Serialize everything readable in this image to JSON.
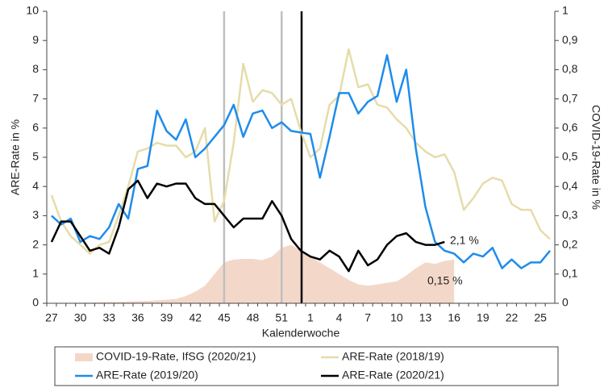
{
  "chart_data": {
    "type": "line",
    "ylabel": "ARE-Rate in %",
    "y2label": "COVID-19-Rate in %",
    "xlabel": "Kalenderwoche",
    "categories": [
      "27",
      null,
      null,
      "30",
      null,
      null,
      "33",
      null,
      null,
      "36",
      null,
      null,
      "39",
      null,
      null,
      "42",
      null,
      null,
      "45",
      null,
      null,
      "48",
      null,
      null,
      "51",
      null,
      null,
      "1",
      null,
      null,
      "4",
      null,
      null,
      "7",
      null,
      null,
      "10",
      null,
      null,
      "13",
      null,
      null,
      "16",
      null,
      null,
      "19",
      null,
      null,
      "22",
      null,
      null,
      "25",
      null
    ],
    "ylim": [
      0,
      10
    ],
    "yticks": [
      0,
      1,
      2,
      3,
      4,
      5,
      6,
      7,
      8,
      9,
      10
    ],
    "y2lim": [
      0,
      1
    ],
    "y2ticks": [
      0,
      {
        "value": 0.1,
        "label": "0,1"
      },
      {
        "value": 0.2,
        "label": "0,2"
      },
      {
        "value": 0.3,
        "label": "0,3"
      },
      {
        "value": 0.4,
        "label": "0,4"
      },
      {
        "value": 0.5,
        "label": "0,5"
      },
      {
        "value": 0.6,
        "label": "0,6"
      },
      {
        "value": 0.7,
        "label": "0,7"
      },
      {
        "value": 0.8,
        "label": "0,8"
      },
      {
        "value": 0.9,
        "label": "0,9"
      },
      1
    ],
    "series": [
      {
        "name": "COVID-19-Rate, IfSG (2020/21)",
        "kind": "area",
        "axis": "y2",
        "color": "#f3d8ca",
        "values": [
          0.001,
          0.001,
          0.001,
          0.002,
          0.002,
          0.003,
          0.004,
          0.005,
          0.006,
          0.007,
          0.008,
          0.01,
          0.012,
          0.015,
          0.025,
          0.04,
          0.06,
          0.1,
          0.14,
          0.15,
          0.152,
          0.152,
          0.148,
          0.16,
          0.19,
          0.2,
          0.18,
          0.16,
          0.14,
          0.12,
          0.1,
          0.08,
          0.065,
          0.06,
          0.065,
          0.07,
          0.075,
          0.095,
          0.12,
          0.14,
          0.135,
          0.145,
          0.15,
          null,
          null,
          null,
          null,
          null,
          null,
          null,
          null,
          null,
          null
        ]
      },
      {
        "name": "ARE-Rate (2018/19)",
        "kind": "line",
        "color": "#e6dcaa",
        "values": [
          3.7,
          2.8,
          2.3,
          2.0,
          1.7,
          2.0,
          2.1,
          3.0,
          4.0,
          5.2,
          5.3,
          5.5,
          5.4,
          5.4,
          5.0,
          5.2,
          6.0,
          2.8,
          3.5,
          5.5,
          8.2,
          6.9,
          7.3,
          7.2,
          6.8,
          7.0,
          5.9,
          5.0,
          5.3,
          6.8,
          7.1,
          8.7,
          7.4,
          7.5,
          6.8,
          6.7,
          6.3,
          6.0,
          5.5,
          5.2,
          5.0,
          5.1,
          4.5,
          3.2,
          3.6,
          4.1,
          4.3,
          4.2,
          3.4,
          3.2,
          3.2,
          2.5,
          2.2
        ]
      },
      {
        "name": "ARE-Rate (2019/20)",
        "kind": "line",
        "color": "#1f8ceb",
        "values": [
          3.0,
          2.7,
          2.9,
          2.1,
          2.3,
          2.2,
          2.6,
          3.4,
          2.9,
          4.6,
          4.7,
          6.6,
          5.9,
          5.6,
          6.3,
          5.0,
          5.3,
          5.7,
          6.1,
          6.8,
          5.7,
          6.5,
          6.6,
          6.0,
          6.2,
          5.9,
          5.85,
          5.8,
          4.3,
          5.7,
          7.2,
          7.2,
          6.5,
          6.9,
          7.1,
          8.5,
          6.9,
          8.0,
          5.3,
          3.3,
          2.1,
          1.8,
          1.7,
          1.4,
          1.7,
          1.6,
          1.9,
          1.2,
          1.5,
          1.2,
          1.4,
          1.4,
          1.8
        ]
      },
      {
        "name": "ARE-Rate (2020/21)",
        "kind": "line",
        "color": "#000000",
        "values": [
          2.1,
          2.8,
          2.8,
          2.3,
          1.8,
          1.9,
          1.7,
          2.6,
          3.9,
          4.2,
          3.6,
          4.1,
          4.0,
          4.1,
          4.1,
          3.6,
          3.4,
          3.4,
          3.0,
          2.6,
          2.9,
          2.9,
          2.9,
          3.5,
          3.0,
          2.2,
          1.8,
          1.6,
          1.5,
          1.8,
          1.6,
          1.1,
          1.8,
          1.3,
          1.5,
          2.0,
          2.3,
          2.4,
          2.1,
          2.0,
          2.0,
          2.1,
          null,
          null,
          null,
          null,
          null,
          null,
          null,
          null,
          null,
          null,
          null
        ]
      }
    ],
    "annotations": [
      "2,1 %",
      "0,15 %"
    ]
  }
}
